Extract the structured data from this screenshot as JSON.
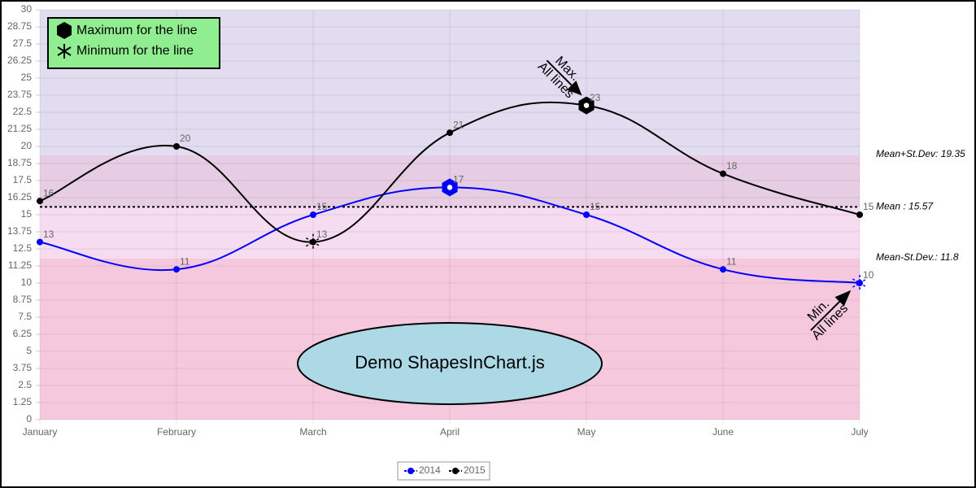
{
  "chart_data": {
    "type": "line",
    "categories": [
      "January",
      "February",
      "March",
      "April",
      "May",
      "June",
      "July"
    ],
    "series": [
      {
        "name": "2014",
        "color": "#0000ff",
        "values": [
          13,
          11,
          15,
          17,
          15,
          11,
          10
        ]
      },
      {
        "name": "2015",
        "color": "#000000",
        "values": [
          16,
          20,
          13,
          21,
          23,
          18,
          15
        ]
      }
    ],
    "ylim": [
      0,
      30
    ],
    "yticks": [
      0,
      1.25,
      2.5,
      3.75,
      5,
      6.25,
      7.5,
      8.75,
      10,
      11.25,
      12.5,
      13.75,
      15,
      16.25,
      17.5,
      18.75,
      20,
      21.25,
      22.5,
      23.75,
      25,
      26.25,
      27.5,
      28.75,
      30
    ],
    "grid": true,
    "reference_lines": [
      {
        "label": "Mean+St.Dev: 19.35",
        "value": 19.35
      },
      {
        "label": "Mean : 15.57",
        "value": 15.57
      },
      {
        "label": "Mean-St.Dev.: 11.8",
        "value": 11.8
      }
    ],
    "band_colors": [
      "#e2dcf1",
      "#e6cde3",
      "#f6dcf1",
      "#f6c8de"
    ],
    "annotations": {
      "max_shape": "Maximum for the line",
      "min_shape": "Minimum for the line",
      "max_arrow": [
        "Max.",
        "All lines"
      ],
      "min_arrow": [
        "Min.",
        "All lines"
      ],
      "demo": "Demo ShapesInChart.js"
    }
  }
}
